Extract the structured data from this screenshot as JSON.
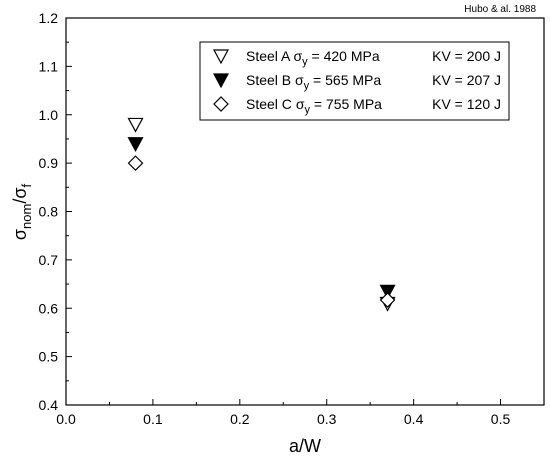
{
  "chart_data": {
    "type": "scatter",
    "source_note": "Hubo & al. 1988",
    "xlabel": "a/W",
    "ylabel": "σ",
    "ylabel_sub1": "nom",
    "ylabel_mid": "/σ",
    "ylabel_sub2": "f",
    "xlim": [
      0.0,
      0.55
    ],
    "ylim": [
      0.4,
      1.2
    ],
    "xticks": [
      "0.0",
      "0.1",
      "0.2",
      "0.3",
      "0.4",
      "0.5"
    ],
    "yticks": [
      "0.4",
      "0.5",
      "0.6",
      "0.7",
      "0.8",
      "0.9",
      "1.0",
      "1.1",
      "1.2"
    ],
    "grid": false,
    "legend_position": "top-right",
    "series": [
      {
        "name": "Steel A",
        "sigma_label": "σ",
        "sigma_sub": "y",
        "yield": " = 420 MPa",
        "kv": "KV = 200 J",
        "marker": "triangle-down-open",
        "points": [
          {
            "x": 0.08,
            "y": 0.98
          },
          {
            "x": 0.37,
            "y": 0.61
          }
        ]
      },
      {
        "name": "Steel B",
        "sigma_label": "σ",
        "sigma_sub": "y",
        "yield": " = 565 MPa",
        "kv": "KV = 207 J",
        "marker": "triangle-down-filled",
        "points": [
          {
            "x": 0.08,
            "y": 0.94
          },
          {
            "x": 0.37,
            "y": 0.635
          }
        ]
      },
      {
        "name": "Steel C",
        "sigma_label": "σ",
        "sigma_sub": "y",
        "yield": " = 755 MPa",
        "kv": "KV = 120 J",
        "marker": "diamond-open",
        "points": [
          {
            "x": 0.08,
            "y": 0.9
          },
          {
            "x": 0.37,
            "y": 0.617
          }
        ]
      }
    ]
  }
}
